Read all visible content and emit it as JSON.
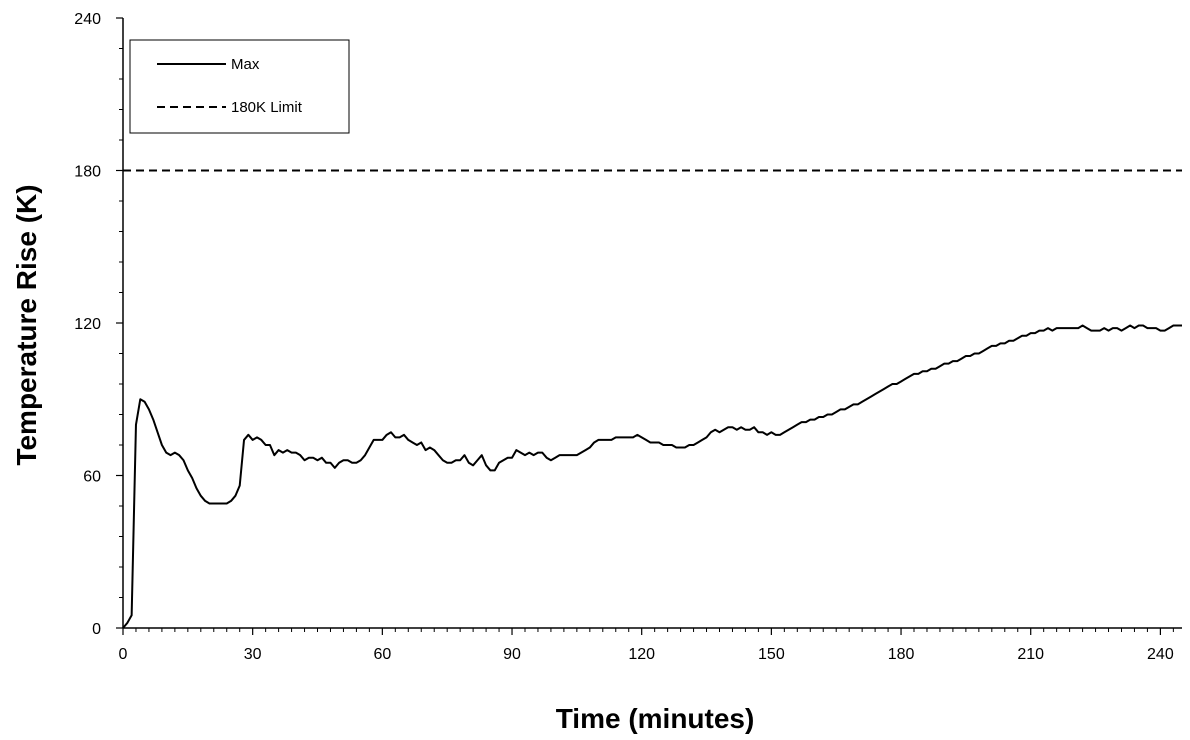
{
  "chart_data": {
    "type": "line",
    "title": "",
    "xlabel": "Time (minutes)",
    "ylabel": "Temperature Rise (K)",
    "xlim": [
      0,
      245
    ],
    "ylim": [
      0,
      240
    ],
    "x_ticks": [
      0,
      30,
      60,
      90,
      120,
      150,
      180,
      210,
      240
    ],
    "x_tick_labels": [
      "0",
      "30",
      "60",
      "90",
      "120",
      "150",
      "180",
      "210",
      "240"
    ],
    "y_ticks": [
      0,
      60,
      120,
      180,
      240
    ],
    "y_tick_labels": [
      "0",
      "60",
      "120",
      "180",
      "240"
    ],
    "grid": false,
    "legend_position": "top-left",
    "series": [
      {
        "name": "Max",
        "style": "solid",
        "color": "#000000",
        "points": [
          [
            0,
            0
          ],
          [
            1,
            2
          ],
          [
            2,
            5
          ],
          [
            3,
            80
          ],
          [
            4,
            90
          ],
          [
            5,
            89
          ],
          [
            6,
            86
          ],
          [
            7,
            82
          ],
          [
            8,
            77
          ],
          [
            9,
            72
          ],
          [
            10,
            69
          ],
          [
            11,
            68
          ],
          [
            12,
            69
          ],
          [
            13,
            68
          ],
          [
            14,
            66
          ],
          [
            15,
            62
          ],
          [
            16,
            59
          ],
          [
            17,
            55
          ],
          [
            18,
            52
          ],
          [
            19,
            50
          ],
          [
            20,
            49
          ],
          [
            21,
            49
          ],
          [
            22,
            49
          ],
          [
            23,
            49
          ],
          [
            24,
            49
          ],
          [
            25,
            50
          ],
          [
            26,
            52
          ],
          [
            27,
            56
          ],
          [
            28,
            74
          ],
          [
            29,
            76
          ],
          [
            30,
            74
          ],
          [
            31,
            75
          ],
          [
            32,
            74
          ],
          [
            33,
            72
          ],
          [
            34,
            72
          ],
          [
            35,
            68
          ],
          [
            36,
            70
          ],
          [
            37,
            69
          ],
          [
            38,
            70
          ],
          [
            39,
            69
          ],
          [
            40,
            69
          ],
          [
            41,
            68
          ],
          [
            42,
            66
          ],
          [
            43,
            67
          ],
          [
            44,
            67
          ],
          [
            45,
            66
          ],
          [
            46,
            67
          ],
          [
            47,
            65
          ],
          [
            48,
            65
          ],
          [
            49,
            63
          ],
          [
            50,
            65
          ],
          [
            51,
            66
          ],
          [
            52,
            66
          ],
          [
            53,
            65
          ],
          [
            54,
            65
          ],
          [
            55,
            66
          ],
          [
            56,
            68
          ],
          [
            57,
            71
          ],
          [
            58,
            74
          ],
          [
            59,
            74
          ],
          [
            60,
            74
          ],
          [
            61,
            76
          ],
          [
            62,
            77
          ],
          [
            63,
            75
          ],
          [
            64,
            75
          ],
          [
            65,
            76
          ],
          [
            66,
            74
          ],
          [
            67,
            73
          ],
          [
            68,
            72
          ],
          [
            69,
            73
          ],
          [
            70,
            70
          ],
          [
            71,
            71
          ],
          [
            72,
            70
          ],
          [
            73,
            68
          ],
          [
            74,
            66
          ],
          [
            75,
            65
          ],
          [
            76,
            65
          ],
          [
            77,
            66
          ],
          [
            78,
            66
          ],
          [
            79,
            68
          ],
          [
            80,
            65
          ],
          [
            81,
            64
          ],
          [
            82,
            66
          ],
          [
            83,
            68
          ],
          [
            84,
            64
          ],
          [
            85,
            62
          ],
          [
            86,
            62
          ],
          [
            87,
            65
          ],
          [
            88,
            66
          ],
          [
            89,
            67
          ],
          [
            90,
            67
          ],
          [
            91,
            70
          ],
          [
            92,
            69
          ],
          [
            93,
            68
          ],
          [
            94,
            69
          ],
          [
            95,
            68
          ],
          [
            96,
            69
          ],
          [
            97,
            69
          ],
          [
            98,
            67
          ],
          [
            99,
            66
          ],
          [
            100,
            67
          ],
          [
            101,
            68
          ],
          [
            102,
            68
          ],
          [
            103,
            68
          ],
          [
            104,
            68
          ],
          [
            105,
            68
          ],
          [
            106,
            69
          ],
          [
            107,
            70
          ],
          [
            108,
            71
          ],
          [
            109,
            73
          ],
          [
            110,
            74
          ],
          [
            111,
            74
          ],
          [
            112,
            74
          ],
          [
            113,
            74
          ],
          [
            114,
            75
          ],
          [
            115,
            75
          ],
          [
            116,
            75
          ],
          [
            117,
            75
          ],
          [
            118,
            75
          ],
          [
            119,
            76
          ],
          [
            120,
            75
          ],
          [
            121,
            74
          ],
          [
            122,
            73
          ],
          [
            123,
            73
          ],
          [
            124,
            73
          ],
          [
            125,
            72
          ],
          [
            126,
            72
          ],
          [
            127,
            72
          ],
          [
            128,
            71
          ],
          [
            129,
            71
          ],
          [
            130,
            71
          ],
          [
            131,
            72
          ],
          [
            132,
            72
          ],
          [
            133,
            73
          ],
          [
            134,
            74
          ],
          [
            135,
            75
          ],
          [
            136,
            77
          ],
          [
            137,
            78
          ],
          [
            138,
            77
          ],
          [
            139,
            78
          ],
          [
            140,
            79
          ],
          [
            141,
            79
          ],
          [
            142,
            78
          ],
          [
            143,
            79
          ],
          [
            144,
            78
          ],
          [
            145,
            78
          ],
          [
            146,
            79
          ],
          [
            147,
            77
          ],
          [
            148,
            77
          ],
          [
            149,
            76
          ],
          [
            150,
            77
          ],
          [
            151,
            76
          ],
          [
            152,
            76
          ],
          [
            153,
            77
          ],
          [
            154,
            78
          ],
          [
            155,
            79
          ],
          [
            156,
            80
          ],
          [
            157,
            81
          ],
          [
            158,
            81
          ],
          [
            159,
            82
          ],
          [
            160,
            82
          ],
          [
            161,
            83
          ],
          [
            162,
            83
          ],
          [
            163,
            84
          ],
          [
            164,
            84
          ],
          [
            165,
            85
          ],
          [
            166,
            86
          ],
          [
            167,
            86
          ],
          [
            168,
            87
          ],
          [
            169,
            88
          ],
          [
            170,
            88
          ],
          [
            171,
            89
          ],
          [
            172,
            90
          ],
          [
            173,
            91
          ],
          [
            174,
            92
          ],
          [
            175,
            93
          ],
          [
            176,
            94
          ],
          [
            177,
            95
          ],
          [
            178,
            96
          ],
          [
            179,
            96
          ],
          [
            180,
            97
          ],
          [
            181,
            98
          ],
          [
            182,
            99
          ],
          [
            183,
            100
          ],
          [
            184,
            100
          ],
          [
            185,
            101
          ],
          [
            186,
            101
          ],
          [
            187,
            102
          ],
          [
            188,
            102
          ],
          [
            189,
            103
          ],
          [
            190,
            104
          ],
          [
            191,
            104
          ],
          [
            192,
            105
          ],
          [
            193,
            105
          ],
          [
            194,
            106
          ],
          [
            195,
            107
          ],
          [
            196,
            107
          ],
          [
            197,
            108
          ],
          [
            198,
            108
          ],
          [
            199,
            109
          ],
          [
            200,
            110
          ],
          [
            201,
            111
          ],
          [
            202,
            111
          ],
          [
            203,
            112
          ],
          [
            204,
            112
          ],
          [
            205,
            113
          ],
          [
            206,
            113
          ],
          [
            207,
            114
          ],
          [
            208,
            115
          ],
          [
            209,
            115
          ],
          [
            210,
            116
          ],
          [
            211,
            116
          ],
          [
            212,
            117
          ],
          [
            213,
            117
          ],
          [
            214,
            118
          ],
          [
            215,
            117
          ],
          [
            216,
            118
          ],
          [
            217,
            118
          ],
          [
            218,
            118
          ],
          [
            219,
            118
          ],
          [
            220,
            118
          ],
          [
            221,
            118
          ],
          [
            222,
            119
          ],
          [
            223,
            118
          ],
          [
            224,
            117
          ],
          [
            225,
            117
          ],
          [
            226,
            117
          ],
          [
            227,
            118
          ],
          [
            228,
            117
          ],
          [
            229,
            118
          ],
          [
            230,
            118
          ],
          [
            231,
            117
          ],
          [
            232,
            118
          ],
          [
            233,
            119
          ],
          [
            234,
            118
          ],
          [
            235,
            119
          ],
          [
            236,
            119
          ],
          [
            237,
            118
          ],
          [
            238,
            118
          ],
          [
            239,
            118
          ],
          [
            240,
            117
          ],
          [
            241,
            117
          ],
          [
            242,
            118
          ],
          [
            243,
            119
          ],
          [
            244,
            119
          ],
          [
            245,
            119
          ]
        ]
      },
      {
        "name": "180K Limit",
        "style": "dashed",
        "color": "#000000",
        "points": [
          [
            0,
            180
          ],
          [
            245,
            180
          ]
        ]
      }
    ]
  }
}
